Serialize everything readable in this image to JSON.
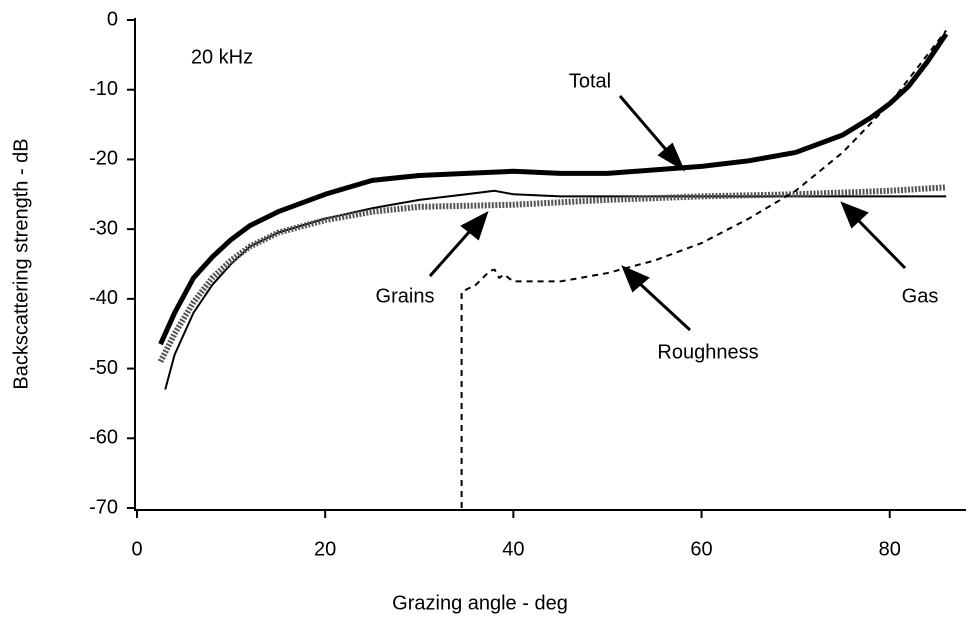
{
  "chart_data": {
    "type": "line",
    "annotation": "20 kHz",
    "x_label": "Grazing angle - deg",
    "y_label": "Backscattering strength - dB",
    "xlim": [
      0,
      88
    ],
    "ylim": [
      -70,
      0
    ],
    "xticks": [
      0,
      20,
      40,
      60,
      80
    ],
    "yticks": [
      0,
      -10,
      -20,
      -30,
      -40,
      -50,
      -60,
      -70
    ],
    "series": [
      {
        "name": "Total",
        "color": "#000000",
        "style": "thick",
        "x": [
          2.5,
          4,
          6,
          8,
          10,
          12,
          15,
          20,
          25,
          30,
          35,
          40,
          45,
          50,
          55,
          60,
          65,
          70,
          75,
          78,
          80,
          82,
          84,
          86
        ],
        "values": [
          -46.5,
          -42,
          -37,
          -34,
          -31.5,
          -29.5,
          -27.5,
          -25,
          -23,
          -22.3,
          -22,
          -21.7,
          -22,
          -22,
          -21.5,
          -21,
          -20.2,
          -19,
          -16.5,
          -14,
          -12,
          -9.5,
          -6,
          -2
        ]
      },
      {
        "name": "Grains",
        "color": "#000000",
        "style": "thin",
        "x": [
          3,
          4,
          6,
          8,
          10,
          12,
          15,
          20,
          25,
          30,
          35,
          38,
          40,
          45,
          50,
          60,
          70,
          86
        ],
        "values": [
          -53,
          -48,
          -42,
          -38,
          -35,
          -32.5,
          -30.5,
          -28.5,
          -27,
          -25.8,
          -25,
          -24.5,
          -25,
          -25.3,
          -25.3,
          -25.3,
          -25.3,
          -25.3
        ]
      },
      {
        "name": "Gas",
        "color": "#555555",
        "style": "hatched",
        "x": [
          2.5,
          4,
          6,
          8,
          10,
          12,
          15,
          20,
          25,
          30,
          40,
          50,
          60,
          70,
          80,
          86
        ],
        "values": [
          -49,
          -45,
          -40.5,
          -37,
          -34.5,
          -32.5,
          -30.5,
          -28.7,
          -27.5,
          -26.8,
          -26.5,
          -25.8,
          -25.3,
          -25,
          -24.5,
          -24
        ]
      },
      {
        "name": "Roughness",
        "color": "#000000",
        "style": "dashed",
        "x": [
          34.5,
          34.5,
          36,
          37.5,
          38,
          38.5,
          39,
          40,
          45,
          50,
          55,
          60,
          65,
          70,
          75,
          80,
          84,
          86
        ],
        "values": [
          -70,
          -39,
          -38,
          -36,
          -35.8,
          -37,
          -36.5,
          -37.5,
          -37.5,
          -36.3,
          -34.5,
          -32,
          -28.5,
          -24.5,
          -19,
          -12,
          -5,
          -1.5
        ]
      }
    ]
  }
}
